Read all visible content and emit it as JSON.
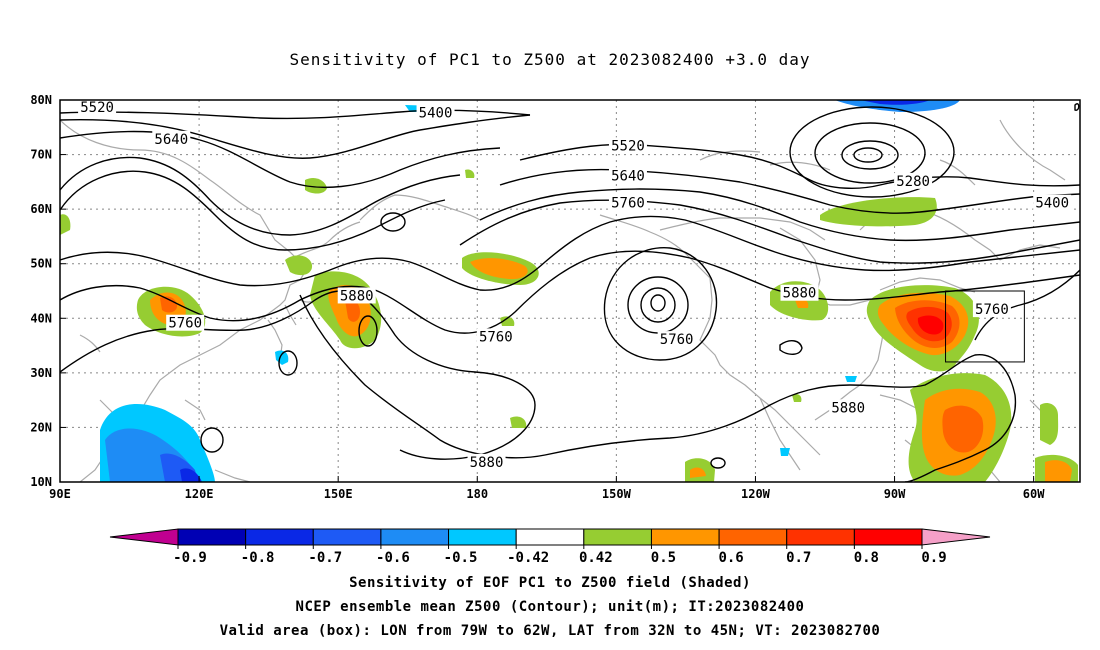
{
  "title": "Sensitivity of PC1 to Z500 at 2023082400 +3.0 day",
  "axes": {
    "lat_labels": [
      "80N",
      "70N",
      "60N",
      "50N",
      "40N",
      "30N",
      "20N",
      "10N"
    ],
    "lon_labels": [
      "90E",
      "120E",
      "150E",
      "180",
      "150W",
      "120W",
      "90W",
      "60W"
    ]
  },
  "contour_labels": [
    {
      "text": "5520",
      "lon": 98,
      "lat": 78.5
    },
    {
      "text": "5400",
      "lon": 171,
      "lat": 77.5
    },
    {
      "text": "5640",
      "lon": 114,
      "lat": 72.7
    },
    {
      "text": "5520",
      "lon": -147.5,
      "lat": 71.5
    },
    {
      "text": "5640",
      "lon": -147.5,
      "lat": 66.0
    },
    {
      "text": "5760",
      "lon": -147.5,
      "lat": 61.0
    },
    {
      "text": "5280",
      "lon": -86,
      "lat": 65.0
    },
    {
      "text": "5400",
      "lon": -56,
      "lat": 61.0
    },
    {
      "text": "5880",
      "lon": 154,
      "lat": 44.0
    },
    {
      "text": "5760",
      "lon": 117,
      "lat": 39.0
    },
    {
      "text": "5760",
      "lon": -176,
      "lat": 36.5
    },
    {
      "text": "5760",
      "lon": -137,
      "lat": 36.0
    },
    {
      "text": "5880",
      "lon": -110.5,
      "lat": 44.5
    },
    {
      "text": "5760",
      "lon": -69,
      "lat": 41.5
    },
    {
      "text": "5880",
      "lon": -100,
      "lat": 23.5
    },
    {
      "text": "5880",
      "lon": -178,
      "lat": 13.5
    }
  ],
  "valid_area": {
    "lon_from": -79,
    "lon_to": -62,
    "lat_from": 32,
    "lat_to": 45
  },
  "colorbar": {
    "labels": [
      "-0.9",
      "-0.8",
      "-0.7",
      "-0.6",
      "-0.5",
      "-0.42",
      "0.42",
      "0.5",
      "0.6",
      "0.7",
      "0.8",
      "0.9"
    ],
    "colors": [
      "#c00090",
      "#0000b4",
      "#0a28e6",
      "#1e5af5",
      "#1e8cf5",
      "#00c8ff",
      "#ffffff",
      "#96cd32",
      "#ff9600",
      "#ff6400",
      "#ff3200",
      "#ff0000",
      "#f5a0c8"
    ]
  },
  "captions": {
    "line1": "Sensitivity of EOF PC1 to Z500 field (Shaded)",
    "line2": "NCEP ensemble mean Z500 (Contour); unit(m); IT:2023082400",
    "line3": "Valid area (box): LON from 79W to 62W, LAT from 32N to 45N; VT: 2023082700"
  }
}
